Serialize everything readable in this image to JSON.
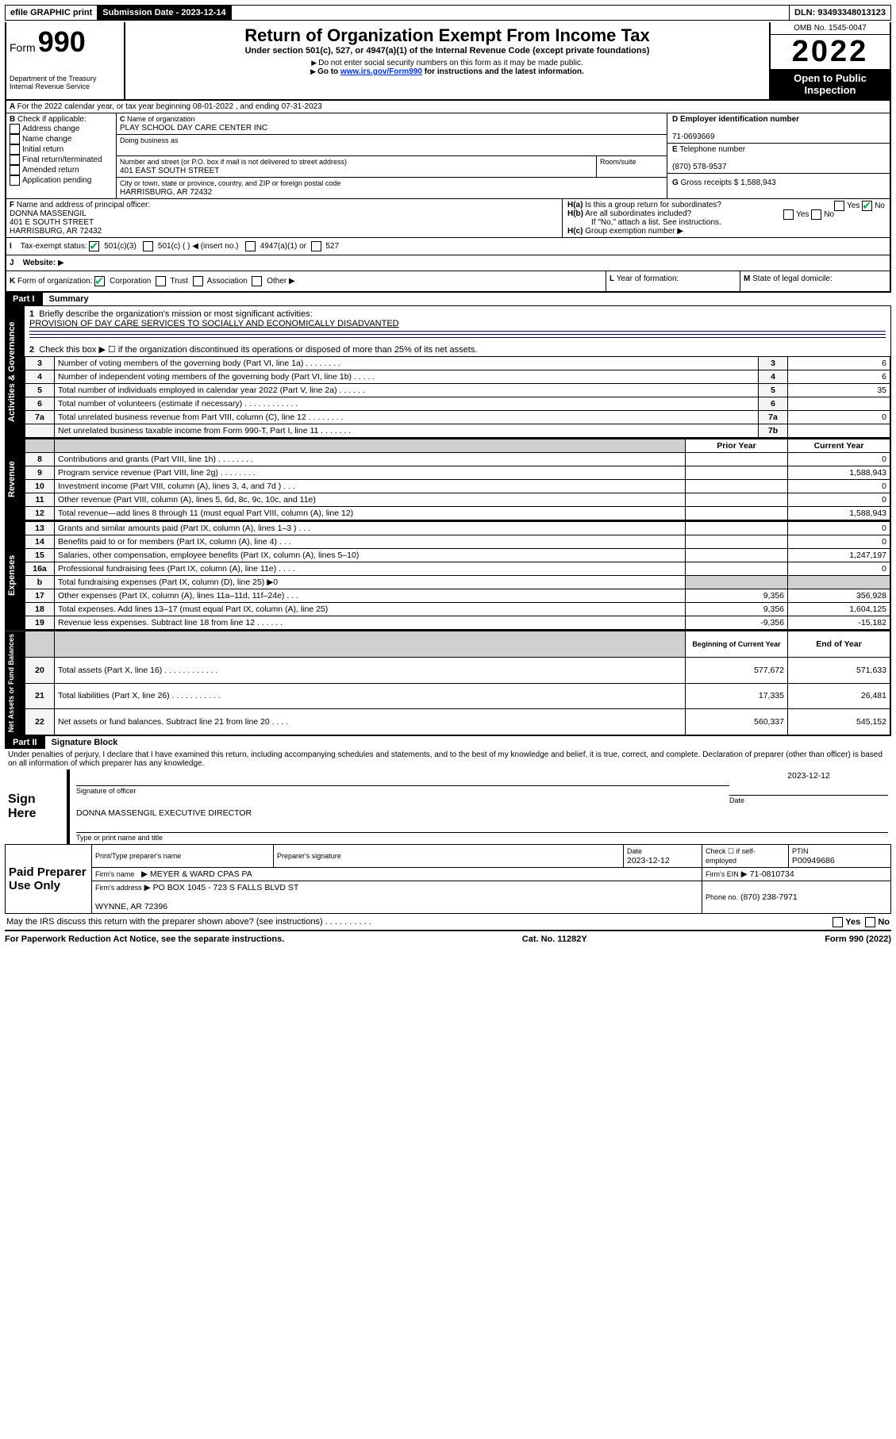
{
  "topbar": {
    "efile": "efile GRAPHIC print",
    "submission_label": "Submission Date - 2023-12-14",
    "dln": "DLN: 93493348013123"
  },
  "header": {
    "form_word": "Form",
    "form_num": "990",
    "title": "Return of Organization Exempt From Income Tax",
    "subtitle": "Under section 501(c), 527, or 4947(a)(1) of the Internal Revenue Code (except private foundations)",
    "note1": "Do not enter social security numbers on this form as it may be made public.",
    "note2_pre": "Go to ",
    "note2_link": "www.irs.gov/Form990",
    "note2_post": " for instructions and the latest information.",
    "dept": "Department of the Treasury",
    "irs": "Internal Revenue Service",
    "omb": "OMB No. 1545-0047",
    "year": "2022",
    "inspection": "Open to Public Inspection"
  },
  "period": {
    "line_a": "For the 2022 calendar year, or tax year beginning 08-01-2022    , and ending 07-31-2023"
  },
  "blockB": {
    "label": "Check if applicable:",
    "items": [
      "Address change",
      "Name change",
      "Initial return",
      "Final return/terminated",
      "Amended return",
      "Application pending"
    ]
  },
  "blockC": {
    "name_label": "Name of organization",
    "name": "PLAY SCHOOL DAY CARE CENTER INC",
    "dba_label": "Doing business as",
    "addr_label": "Number and street (or P.O. box if mail is not delivered to street address)",
    "room_label": "Room/suite",
    "addr": "401 EAST SOUTH STREET",
    "city_label": "City or town, state or province, country, and ZIP or foreign postal code",
    "city": "HARRISBURG, AR  72432"
  },
  "blockD": {
    "label": "Employer identification number",
    "val": "71-0693669"
  },
  "blockE": {
    "label": "Telephone number",
    "val": "(870) 578-9537"
  },
  "blockG": {
    "label": "Gross receipts $",
    "val": "1,588,943"
  },
  "blockF": {
    "label": "Name and address of principal officer:",
    "name": "DONNA MASSENGIL",
    "addr1": "401 E SOUTH STREET",
    "addr2": "HARRISBURG, AR  72432"
  },
  "blockH": {
    "a": "Is this a group return for subordinates?",
    "b": "Are all subordinates included?",
    "note": "If \"No,\" attach a list. See instructions.",
    "c": "Group exemption number"
  },
  "blockI": {
    "label": "Tax-exempt status:",
    "opts": [
      "501(c)(3)",
      "501(c) (   ) ◀ (insert no.)",
      "4947(a)(1) or",
      "527"
    ]
  },
  "blockJ": {
    "label": "Website:"
  },
  "blockK": {
    "label": "Form of organization:",
    "opts": [
      "Corporation",
      "Trust",
      "Association",
      "Other"
    ]
  },
  "blockL": {
    "label": "Year of formation:"
  },
  "blockM": {
    "label": "State of legal domicile:"
  },
  "part1": {
    "title": "Summary",
    "mission_label": "Briefly describe the organization's mission or most significant activities:",
    "mission": "PROVISION OF DAY CARE SERVICES TO SOCIALLY AND ECONOMICALLY DISADVANTED",
    "line2": "Check this box ▶ ☐  if the organization discontinued its operations or disposed of more than 25% of its net assets.",
    "side_labels": [
      "Activities & Governance",
      "Revenue",
      "Expenses",
      "Net Assets or Fund Balances"
    ],
    "gov_rows": [
      {
        "n": "3",
        "t": "Number of voting members of the governing body (Part VI, line 1a)   .    .    .    .    .    .    .    .",
        "r": "3",
        "v": "6"
      },
      {
        "n": "4",
        "t": "Number of independent voting members of the governing body (Part VI, line 1b)   .    .    .    .    .",
        "r": "4",
        "v": "6"
      },
      {
        "n": "5",
        "t": "Total number of individuals employed in calendar year 2022 (Part V, line 2a)   .    .    .    .    .    .",
        "r": "5",
        "v": "35"
      },
      {
        "n": "6",
        "t": "Total number of volunteers (estimate if necessary)   .    .    .    .    .    .    .    .    .    .    .    .",
        "r": "6",
        "v": ""
      },
      {
        "n": "7a",
        "t": "Total unrelated business revenue from Part VIII, column (C), line 12   .    .    .    .    .    .    .    .",
        "r": "7a",
        "v": "0"
      },
      {
        "n": "",
        "t": "Net unrelated business taxable income from Form 990-T, Part I, line 11   .    .    .    .    .    .    .",
        "r": "7b",
        "v": ""
      }
    ],
    "col_headers": {
      "py": "Prior Year",
      "cy": "Current Year"
    },
    "rev_rows": [
      {
        "n": "8",
        "t": "Contributions and grants (Part VIII, line 1h)   .    .    .    .    .    .    .    .",
        "py": "",
        "cy": "0"
      },
      {
        "n": "9",
        "t": "Program service revenue (Part VIII, line 2g)   .    .    .    .    .    .    .    .",
        "py": "",
        "cy": "1,588,943"
      },
      {
        "n": "10",
        "t": "Investment income (Part VIII, column (A), lines 3, 4, and 7d )   .    .    .",
        "py": "",
        "cy": "0"
      },
      {
        "n": "11",
        "t": "Other revenue (Part VIII, column (A), lines 5, 6d, 8c, 9c, 10c, and 11e)",
        "py": "",
        "cy": "0"
      },
      {
        "n": "12",
        "t": "Total revenue—add lines 8 through 11 (must equal Part VIII, column (A), line 12)",
        "py": "",
        "cy": "1,588,943"
      }
    ],
    "exp_rows": [
      {
        "n": "13",
        "t": "Grants and similar amounts paid (Part IX, column (A), lines 1–3 )   .    .    .",
        "py": "",
        "cy": "0"
      },
      {
        "n": "14",
        "t": "Benefits paid to or for members (Part IX, column (A), line 4)   .    .    .",
        "py": "",
        "cy": "0"
      },
      {
        "n": "15",
        "t": "Salaries, other compensation, employee benefits (Part IX, column (A), lines 5–10)",
        "py": "",
        "cy": "1,247,197"
      },
      {
        "n": "16a",
        "t": "Professional fundraising fees (Part IX, column (A), line 11e)   .    .    .    .",
        "py": "",
        "cy": "0"
      },
      {
        "n": "b",
        "t": "Total fundraising expenses (Part IX, column (D), line 25) ▶0",
        "py": "gray",
        "cy": "gray"
      },
      {
        "n": "17",
        "t": "Other expenses (Part IX, column (A), lines 11a–11d, 11f–24e)   .    .    .",
        "py": "9,356",
        "cy": "356,928"
      },
      {
        "n": "18",
        "t": "Total expenses. Add lines 13–17 (must equal Part IX, column (A), line 25)",
        "py": "9,356",
        "cy": "1,604,125"
      },
      {
        "n": "19",
        "t": "Revenue less expenses. Subtract line 18 from line 12   .    .    .    .    .    .",
        "py": "-9,356",
        "cy": "-15,182"
      }
    ],
    "net_headers": {
      "b": "Beginning of Current Year",
      "e": "End of Year"
    },
    "net_rows": [
      {
        "n": "20",
        "t": "Total assets (Part X, line 16)   .    .    .    .    .    .    .    .    .    .    .    .",
        "py": "577,672",
        "cy": "571,633"
      },
      {
        "n": "21",
        "t": "Total liabilities (Part X, line 26)   .    .    .    .    .    .    .    .    .    .    .",
        "py": "17,335",
        "cy": "26,481"
      },
      {
        "n": "22",
        "t": "Net assets or fund balances. Subtract line 21 from line 20   .    .    .    .",
        "py": "560,337",
        "cy": "545,152"
      }
    ]
  },
  "part2": {
    "title": "Signature Block",
    "declaration": "Under penalties of perjury, I declare that I have examined this return, including accompanying schedules and statements, and to the best of my knowledge and belief, it is true, correct, and complete. Declaration of preparer (other than officer) is based on all information of which preparer has any knowledge."
  },
  "sign": {
    "label": "Sign Here",
    "sig_label": "Signature of officer",
    "date_label": "Date",
    "date": "2023-12-12",
    "name": "DONNA MASSENGIL  EXECUTIVE DIRECTOR",
    "name_label": "Type or print name and title"
  },
  "preparer": {
    "label": "Paid Preparer Use Only",
    "cols": [
      "Print/Type preparer's name",
      "Preparer's signature",
      "Date",
      "Check ☐ if self-employed",
      "PTIN"
    ],
    "date": "2023-12-12",
    "ptin": "P00949686",
    "firm_label": "Firm's name",
    "firm": "MEYER & WARD CPAS PA",
    "ein_label": "Firm's EIN",
    "ein": "71-0810734",
    "addr_label": "Firm's address",
    "addr": "PO BOX 1045 - 723 S FALLS BLVD ST",
    "city": "WYNNE, AR  72396",
    "phone_label": "Phone no.",
    "phone": "(870) 238-7971"
  },
  "bottom": {
    "q": "May the IRS discuss this return with the preparer shown above? (see instructions)   .    .    .    .    .    .    .    .    .    .",
    "yes": "Yes",
    "no": "No"
  },
  "footer": {
    "left": "For Paperwork Reduction Act Notice, see the separate instructions.",
    "mid": "Cat. No. 11282Y",
    "right": "Form 990 (2022)"
  }
}
